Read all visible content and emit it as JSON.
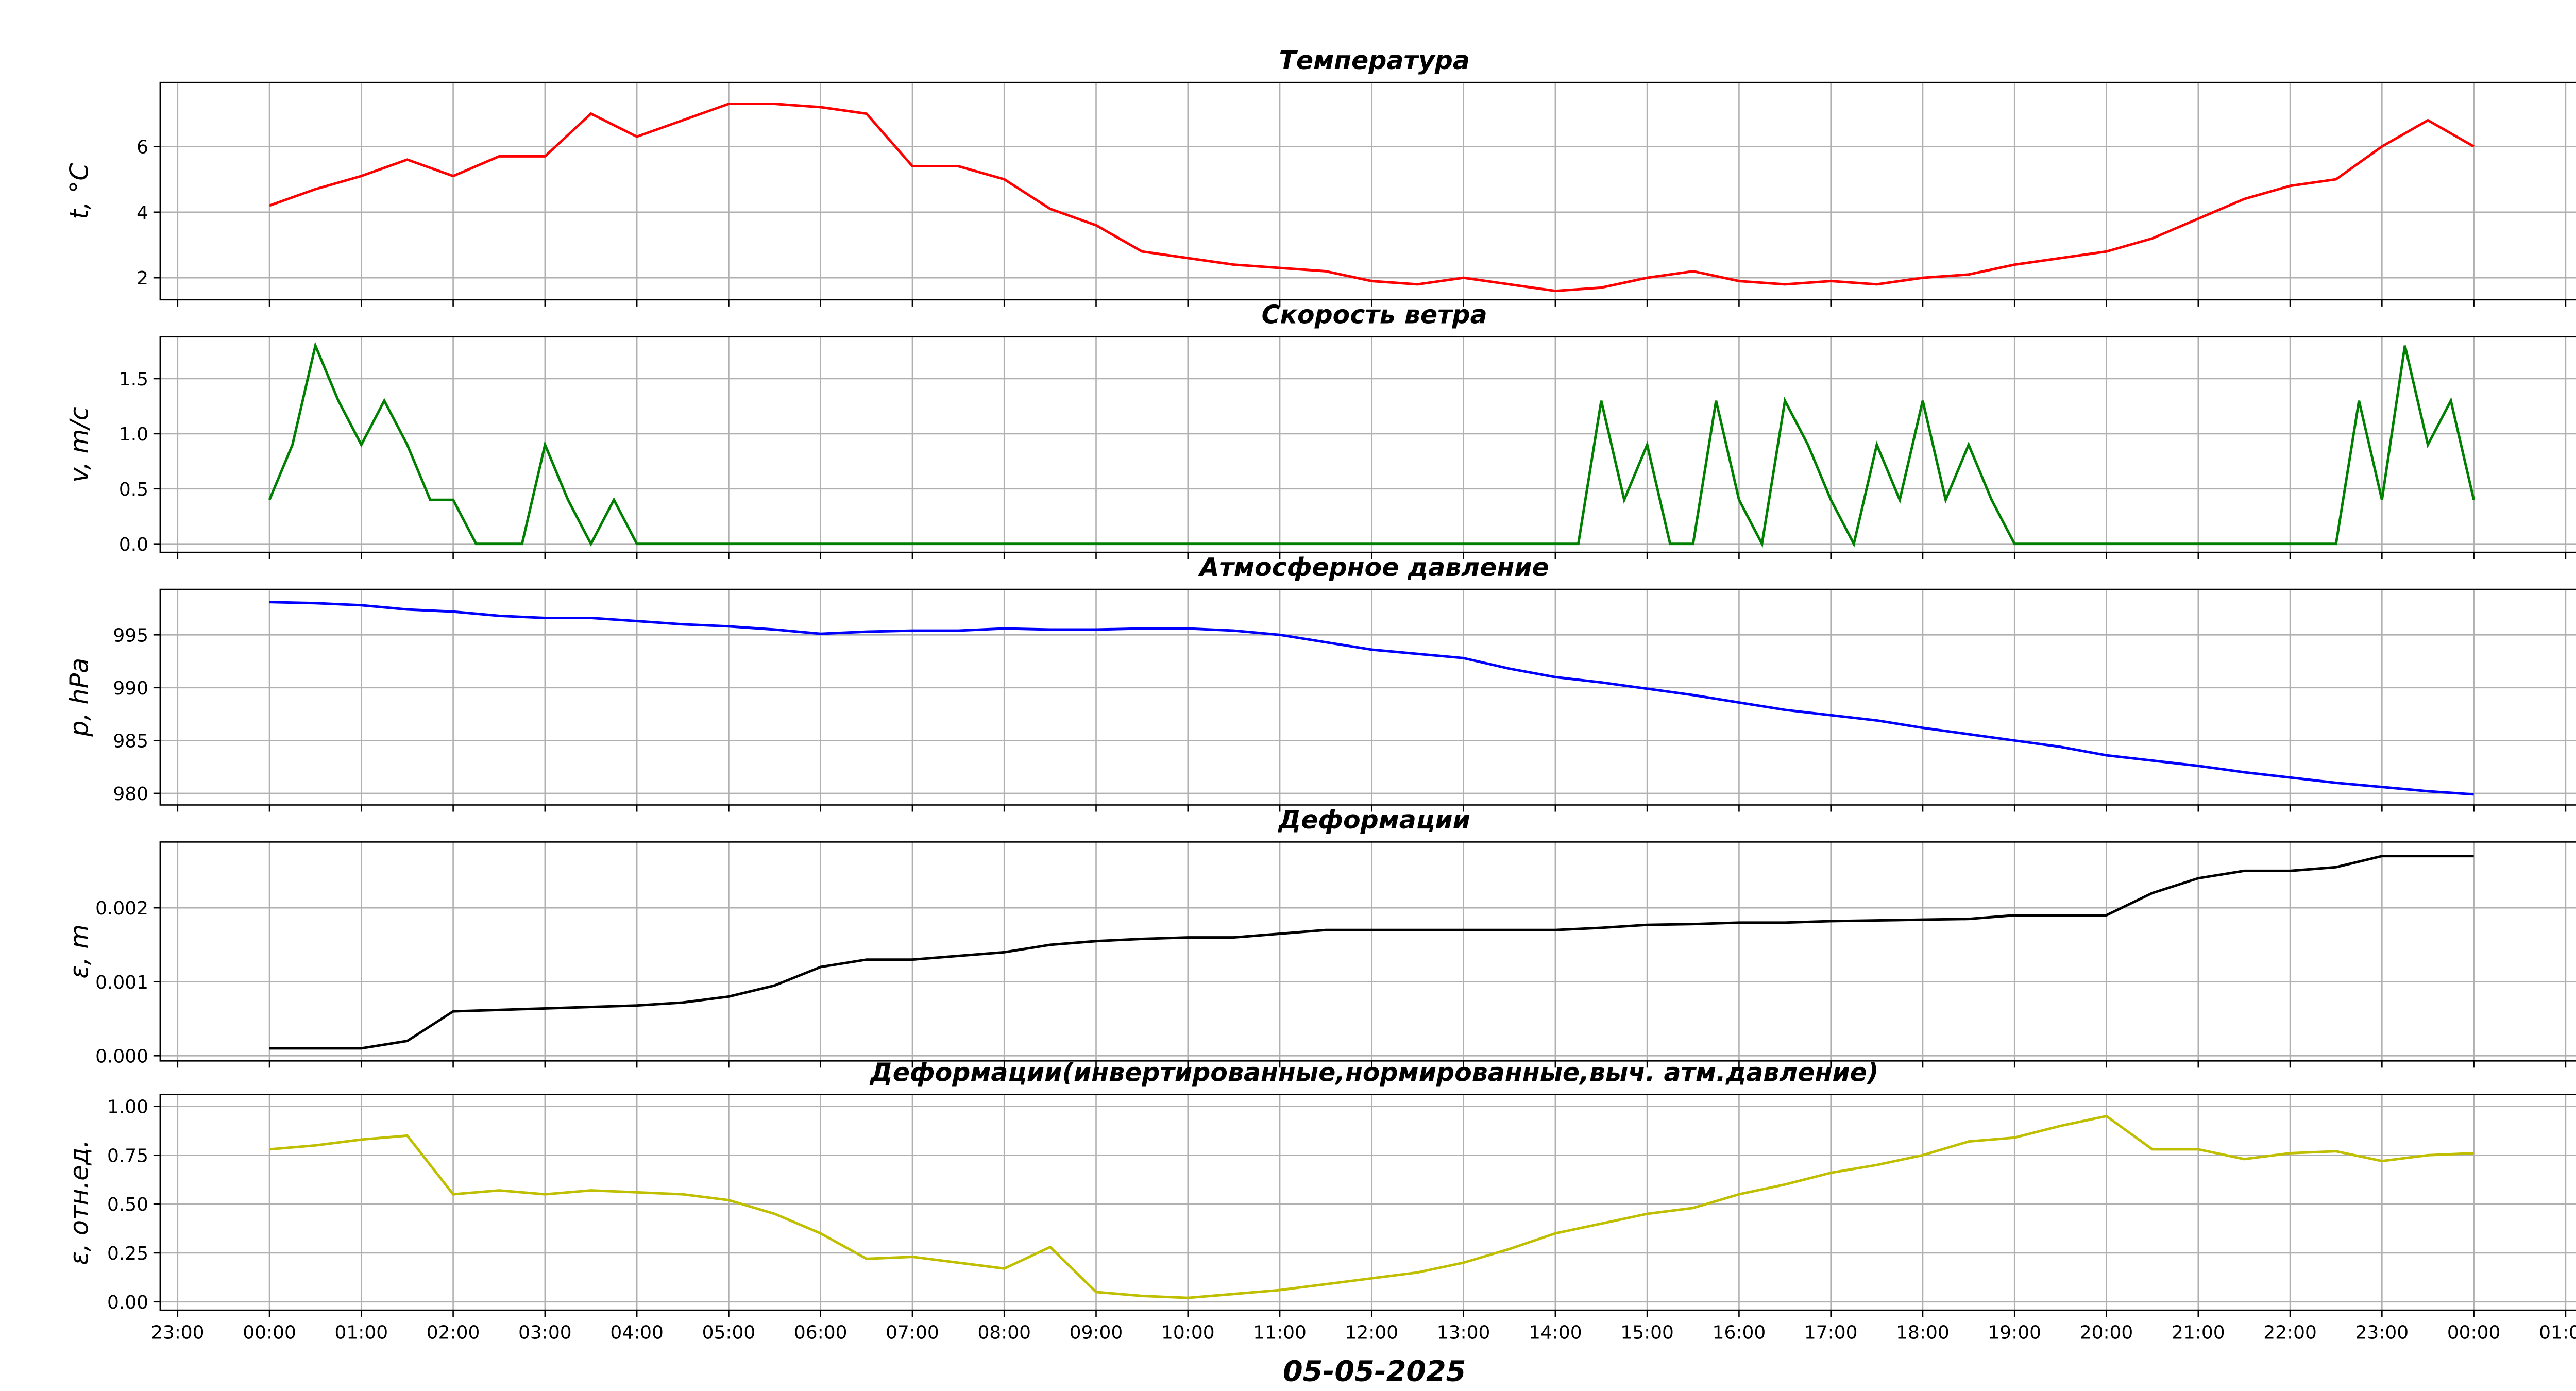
{
  "chart_data": [
    {
      "type": "line",
      "title": "Температура",
      "ylabel": "t, °C",
      "xlim": [
        -1.19,
        25.25
      ],
      "ylim": [
        1.33,
        7.95
      ],
      "yticks": [
        2,
        4,
        6
      ],
      "grid": true,
      "x": [
        0,
        0.5,
        1,
        1.5,
        2,
        2.5,
        3,
        3.5,
        4,
        4.5,
        5,
        5.5,
        6,
        6.5,
        7,
        7.5,
        8,
        8.5,
        9,
        9.5,
        10,
        10.5,
        11,
        11.5,
        12,
        12.5,
        13,
        13.5,
        14,
        14.5,
        15,
        15.5,
        16,
        16.5,
        17,
        17.5,
        18,
        18.5,
        19,
        19.5,
        20,
        20.5,
        21,
        21.5,
        22,
        22.5,
        23,
        23.5,
        24
      ],
      "series": [
        {
          "color": "#ff0000",
          "values": [
            4.2,
            4.7,
            5.1,
            5.6,
            5.1,
            5.7,
            5.7,
            7.0,
            6.3,
            6.8,
            7.3,
            7.3,
            7.2,
            7.0,
            5.4,
            5.4,
            5.0,
            4.1,
            3.6,
            2.8,
            2.6,
            2.4,
            2.3,
            2.2,
            1.9,
            1.8,
            2.0,
            1.8,
            1.6,
            1.7,
            2.0,
            2.2,
            1.9,
            1.8,
            1.9,
            1.8,
            2.0,
            2.1,
            2.4,
            2.6,
            2.8,
            3.2,
            3.8,
            4.4,
            4.8,
            5.0,
            6.0,
            6.8,
            6.0
          ]
        }
      ]
    },
    {
      "type": "line",
      "title": "Скорость ветра",
      "ylabel": "v, m/c",
      "xlim": [
        -1.19,
        25.25
      ],
      "ylim": [
        -0.077,
        1.88
      ],
      "yticks": [
        {
          "value": 0,
          "label": "0.0"
        },
        0.5,
        {
          "value": 1,
          "label": "1.0"
        },
        1.5
      ],
      "grid": true,
      "x": [
        0,
        0.25,
        0.5,
        0.75,
        1,
        1.25,
        1.5,
        1.75,
        2,
        2.25,
        2.5,
        2.75,
        3,
        3.25,
        3.5,
        3.75,
        4,
        4.25,
        4.5,
        4.75,
        5,
        5.25,
        5.5,
        5.75,
        6,
        6.25,
        6.5,
        6.75,
        7,
        7.25,
        7.5,
        7.75,
        8,
        8.25,
        8.5,
        8.75,
        9,
        9.25,
        9.5,
        9.75,
        10,
        10.25,
        10.5,
        10.75,
        11,
        11.25,
        11.5,
        11.75,
        12,
        12.25,
        12.5,
        12.75,
        13,
        13.25,
        13.5,
        13.75,
        14,
        14.25,
        14.5,
        14.75,
        15,
        15.25,
        15.5,
        15.75,
        16,
        16.25,
        16.5,
        16.75,
        17,
        17.25,
        17.5,
        17.75,
        18,
        18.25,
        18.5,
        18.75,
        19,
        19.25,
        19.5,
        19.75,
        20,
        20.25,
        20.5,
        20.75,
        21,
        21.25,
        21.5,
        21.75,
        22,
        22.25,
        22.5,
        22.75,
        23,
        23.25,
        23.5,
        23.75,
        24
      ],
      "series": [
        {
          "color": "#008000",
          "values": [
            0.4,
            0.9,
            1.8,
            1.3,
            0.9,
            1.3,
            0.9,
            0.4,
            0.4,
            0,
            0,
            0,
            0.9,
            0.4,
            0,
            0.4,
            0,
            0,
            0,
            0,
            0,
            0,
            0,
            0,
            0,
            0,
            0,
            0,
            0,
            0,
            0,
            0,
            0,
            0,
            0,
            0,
            0,
            0,
            0,
            0,
            0,
            0,
            0,
            0,
            0,
            0,
            0,
            0,
            0,
            0,
            0,
            0,
            0,
            0,
            0,
            0,
            0,
            0,
            1.3,
            0.4,
            0.9,
            0,
            0,
            1.3,
            0.4,
            0,
            1.3,
            0.9,
            0.4,
            0,
            0.9,
            0.4,
            1.3,
            0.4,
            0.9,
            0.4,
            0,
            0,
            0,
            0,
            0,
            0,
            0,
            0,
            0,
            0,
            0,
            0,
            0,
            0,
            0,
            1.3,
            0.4,
            1.8,
            0.9,
            1.3,
            0.4
          ]
        }
      ]
    },
    {
      "type": "line",
      "title": "Атмосферное давление",
      "ylabel": "p, hPa",
      "xlim": [
        -1.19,
        25.25
      ],
      "ylim": [
        978.9,
        999.3
      ],
      "yticks": [
        980,
        985,
        990,
        995
      ],
      "grid": true,
      "x": [
        0,
        0.5,
        1,
        1.5,
        2,
        2.5,
        3,
        3.5,
        4,
        4.5,
        5,
        5.5,
        6,
        6.5,
        7,
        7.5,
        8,
        8.5,
        9,
        9.5,
        10,
        10.5,
        11,
        11.5,
        12,
        12.5,
        13,
        13.5,
        14,
        14.5,
        15,
        15.5,
        16,
        16.5,
        17,
        17.5,
        18,
        18.5,
        19,
        19.5,
        20,
        20.5,
        21,
        21.5,
        22,
        22.5,
        23,
        23.5,
        24
      ],
      "series": [
        {
          "color": "#0000ff",
          "values": [
            998.1,
            998.0,
            997.8,
            997.4,
            997.2,
            996.8,
            996.6,
            996.6,
            996.3,
            996.0,
            995.8,
            995.5,
            995.1,
            995.3,
            995.4,
            995.4,
            995.6,
            995.5,
            995.5,
            995.6,
            995.6,
            995.4,
            995.0,
            994.3,
            993.6,
            993.2,
            992.8,
            991.8,
            991.0,
            990.5,
            989.9,
            989.3,
            988.6,
            987.9,
            987.4,
            986.9,
            986.2,
            985.6,
            985.0,
            984.4,
            983.6,
            983.1,
            982.6,
            982.0,
            981.5,
            981.0,
            980.6,
            980.2,
            979.9
          ]
        }
      ]
    },
    {
      "type": "line",
      "title": "Деформации",
      "ylabel": "ε, m",
      "xlim": [
        -1.19,
        25.25
      ],
      "ylim": [
        -7e-05,
        0.00289
      ],
      "yticks": [
        {
          "value": 0,
          "label": "0.000"
        },
        {
          "value": 0.001,
          "label": "0.001"
        },
        {
          "value": 0.002,
          "label": "0.002"
        }
      ],
      "grid": true,
      "x": [
        0,
        0.5,
        1,
        1.5,
        2,
        2.5,
        3,
        3.5,
        4,
        4.5,
        5,
        5.5,
        6,
        6.5,
        7,
        7.5,
        8,
        8.5,
        9,
        9.5,
        10,
        10.5,
        11,
        11.5,
        12,
        12.5,
        13,
        13.5,
        14,
        14.5,
        15,
        15.5,
        16,
        16.5,
        17,
        17.5,
        18,
        18.5,
        19,
        19.5,
        20,
        20.5,
        21,
        21.5,
        22,
        22.5,
        23,
        23.5,
        24
      ],
      "series": [
        {
          "color": "#000000",
          "values": [
            0.0001,
            0.0001,
            0.0001,
            0.0002,
            0.0006,
            0.00062,
            0.00064,
            0.00066,
            0.00068,
            0.00072,
            0.0008,
            0.00095,
            0.0012,
            0.0013,
            0.0013,
            0.00135,
            0.0014,
            0.0015,
            0.00155,
            0.00158,
            0.0016,
            0.0016,
            0.00165,
            0.0017,
            0.0017,
            0.0017,
            0.0017,
            0.0017,
            0.0017,
            0.00173,
            0.00177,
            0.00178,
            0.0018,
            0.0018,
            0.00182,
            0.00183,
            0.00184,
            0.00185,
            0.0019,
            0.0019,
            0.0019,
            0.0022,
            0.0024,
            0.0025,
            0.0025,
            0.00255,
            0.0027,
            0.0027,
            0.0027
          ]
        }
      ]
    },
    {
      "type": "line",
      "title": "Деформации(инвертированные,нормированные,выч. атм.давление)",
      "ylabel": "ε, отн.ед.",
      "xlabel": "05-05-2025",
      "xlim": [
        -1.19,
        25.25
      ],
      "ylim": [
        -0.043,
        1.06
      ],
      "yticks": [
        {
          "value": 0,
          "label": "0.00"
        },
        0.25,
        {
          "value": 0.5,
          "label": "0.50"
        },
        0.75,
        {
          "value": 1,
          "label": "1.00"
        }
      ],
      "grid": true,
      "xticks": [
        {
          "value": -1,
          "label": "23:00"
        },
        {
          "value": 0,
          "label": "00:00"
        },
        {
          "value": 1,
          "label": "01:00"
        },
        {
          "value": 2,
          "label": "02:00"
        },
        {
          "value": 3,
          "label": "03:00"
        },
        {
          "value": 4,
          "label": "04:00"
        },
        {
          "value": 5,
          "label": "05:00"
        },
        {
          "value": 6,
          "label": "06:00"
        },
        {
          "value": 7,
          "label": "07:00"
        },
        {
          "value": 8,
          "label": "08:00"
        },
        {
          "value": 9,
          "label": "09:00"
        },
        {
          "value": 10,
          "label": "10:00"
        },
        {
          "value": 11,
          "label": "11:00"
        },
        {
          "value": 12,
          "label": "12:00"
        },
        {
          "value": 13,
          "label": "13:00"
        },
        {
          "value": 14,
          "label": "14:00"
        },
        {
          "value": 15,
          "label": "15:00"
        },
        {
          "value": 16,
          "label": "16:00"
        },
        {
          "value": 17,
          "label": "17:00"
        },
        {
          "value": 18,
          "label": "18:00"
        },
        {
          "value": 19,
          "label": "19:00"
        },
        {
          "value": 20,
          "label": "20:00"
        },
        {
          "value": 21,
          "label": "21:00"
        },
        {
          "value": 22,
          "label": "22:00"
        },
        {
          "value": 23,
          "label": "23:00"
        },
        {
          "value": 24,
          "label": "00:00"
        },
        {
          "value": 25,
          "label": "01:00"
        }
      ],
      "x": [
        0,
        0.5,
        1,
        1.5,
        2,
        2.5,
        3,
        3.5,
        4,
        4.5,
        5,
        5.5,
        6,
        6.5,
        7,
        7.5,
        8,
        8.5,
        9,
        9.5,
        10,
        10.5,
        11,
        11.5,
        12,
        12.5,
        13,
        13.5,
        14,
        14.5,
        15,
        15.5,
        16,
        16.5,
        17,
        17.5,
        18,
        18.5,
        19,
        19.5,
        20,
        20.5,
        21,
        21.5,
        22,
        22.5,
        23,
        23.5,
        24
      ],
      "series": [
        {
          "color": "#bfbf00",
          "values": [
            0.78,
            0.8,
            0.83,
            0.85,
            0.55,
            0.57,
            0.55,
            0.57,
            0.56,
            0.55,
            0.52,
            0.45,
            0.35,
            0.22,
            0.23,
            0.2,
            0.17,
            0.28,
            0.05,
            0.03,
            0.02,
            0.04,
            0.06,
            0.09,
            0.12,
            0.15,
            0.2,
            0.27,
            0.35,
            0.4,
            0.45,
            0.48,
            0.55,
            0.6,
            0.66,
            0.7,
            0.75,
            0.82,
            0.84,
            0.9,
            0.95,
            0.78,
            0.78,
            0.73,
            0.76,
            0.77,
            0.72,
            0.75,
            0.76
          ]
        }
      ]
    }
  ]
}
